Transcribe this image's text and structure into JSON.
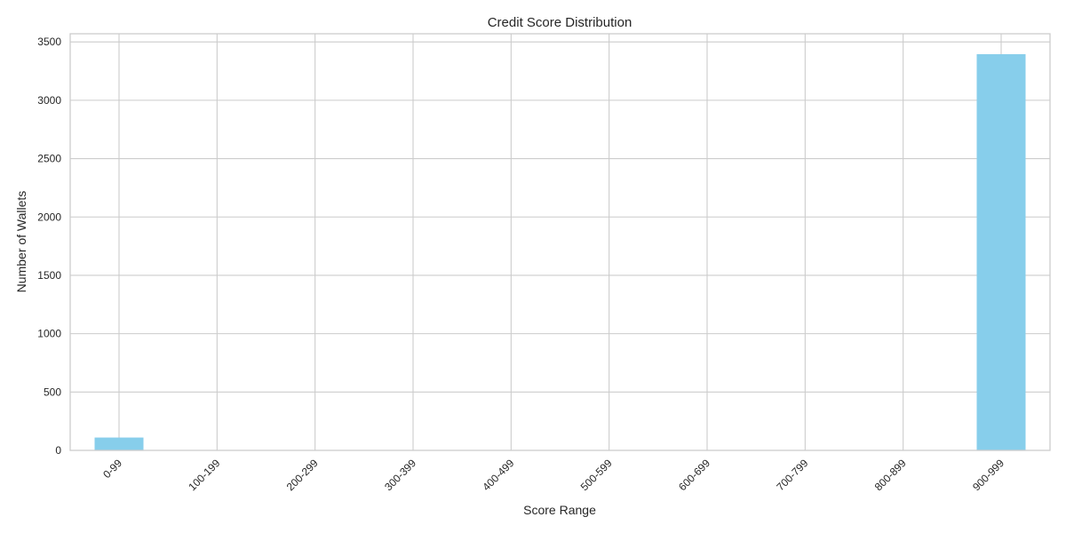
{
  "chart_data": {
    "type": "bar",
    "title": "Credit Score Distribution",
    "xlabel": "Score Range",
    "ylabel": "Number of Wallets",
    "categories": [
      "0-99",
      "100-199",
      "200-299",
      "300-399",
      "400-499",
      "500-599",
      "600-699",
      "700-799",
      "800-899",
      "900-999"
    ],
    "values": [
      110,
      0,
      0,
      0,
      0,
      0,
      0,
      0,
      0,
      3395
    ],
    "ylim": [
      0,
      3570
    ],
    "yticks": [
      0,
      500,
      1000,
      1500,
      2000,
      2500,
      3000,
      3500
    ],
    "grid": true,
    "bar_color": "#87ceeb",
    "grid_color": "#cccccc"
  }
}
